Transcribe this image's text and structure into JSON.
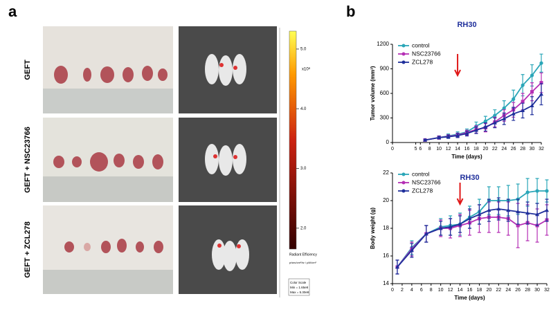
{
  "panel_labels": [
    "a",
    "b"
  ],
  "photo_labels": [
    "GEFT",
    "GEFT + NSC23766",
    "GEFT + ZCL278"
  ],
  "color_scale": {
    "clim": [
      1.65,
      5.3
    ],
    "ticks": [
      {
        "value": 5,
        "label": "5.0"
      },
      {
        "value": 4,
        "label": "4.0"
      },
      {
        "value": 3,
        "label": "3.0"
      },
      {
        "value": 2,
        "label": "2.0"
      }
    ],
    "unit": "x10⁸",
    "title": "Radiant Efficiency",
    "units": "p/sec/cm²/sr / µW/cm²",
    "box": [
      "Color Scale",
      "Min = 1.65e8",
      "Max = 5.30e8"
    ]
  },
  "chart_data": [
    {
      "type": "line",
      "title": "RH30",
      "xlabel": "Time (days)",
      "ylabel": "Tumor volume (mm³)",
      "xlim": [
        0,
        32
      ],
      "xticks": [
        0,
        5,
        6,
        8,
        10,
        12,
        14,
        16,
        18,
        20,
        22,
        24,
        26,
        28,
        30,
        32
      ],
      "ylim": [
        0,
        1200
      ],
      "yticks": [
        0,
        300,
        600,
        900,
        1200
      ],
      "arrow_x": 14,
      "legend": "top-left",
      "x": [
        7,
        10,
        12,
        14,
        16,
        18,
        20,
        22,
        24,
        26,
        28,
        30,
        32
      ],
      "series": [
        {
          "name": "control",
          "color": "#2aa6b8",
          "marker": "circle",
          "values": [
            30,
            60,
            80,
            100,
            130,
            200,
            260,
            330,
            420,
            530,
            700,
            820,
            970
          ],
          "errors": [
            10,
            20,
            25,
            30,
            35,
            50,
            60,
            70,
            90,
            110,
            130,
            130,
            110
          ]
        },
        {
          "name": "NSC23766",
          "color": "#b52fb5",
          "marker": "square",
          "values": [
            30,
            60,
            75,
            90,
            120,
            160,
            180,
            250,
            330,
            400,
            500,
            620,
            730
          ],
          "errors": [
            10,
            20,
            20,
            25,
            30,
            45,
            50,
            60,
            70,
            90,
            100,
            110,
            120
          ]
        },
        {
          "name": "ZCL278",
          "color": "#1f2f9b",
          "marker": "triangle",
          "values": [
            30,
            60,
            70,
            85,
            110,
            150,
            190,
            240,
            290,
            350,
            390,
            450,
            590
          ],
          "errors": [
            10,
            15,
            20,
            25,
            30,
            40,
            50,
            60,
            70,
            80,
            90,
            110,
            130
          ]
        }
      ]
    },
    {
      "type": "line",
      "title": "RH30",
      "xlabel": "Time (days)",
      "ylabel": "Body weight (g)",
      "xlim": [
        0,
        32
      ],
      "xticks": [
        0,
        2,
        4,
        6,
        8,
        10,
        12,
        14,
        16,
        18,
        20,
        22,
        24,
        26,
        28,
        30,
        32
      ],
      "ylim": [
        14,
        22
      ],
      "yticks": [
        14,
        16,
        18,
        20,
        22
      ],
      "arrow_x": 14,
      "legend": "top-left",
      "x": [
        1,
        4,
        7,
        10,
        12,
        14,
        16,
        18,
        20,
        22,
        24,
        26,
        28,
        30,
        32
      ],
      "series": [
        {
          "name": "control",
          "color": "#2aa6b8",
          "marker": "circle",
          "values": [
            15.2,
            16.6,
            17.6,
            18.1,
            18.2,
            18.3,
            18.8,
            19.2,
            20.0,
            20.0,
            20.0,
            20.1,
            20.6,
            20.7,
            20.7
          ],
          "errors": [
            0.5,
            0.5,
            0.6,
            0.6,
            0.7,
            0.8,
            0.8,
            0.9,
            1.0,
            1.0,
            1.1,
            1.1,
            1.0,
            0.9,
            0.8
          ]
        },
        {
          "name": "NSC23766",
          "color": "#b52fb5",
          "marker": "square",
          "values": [
            15.2,
            16.5,
            17.6,
            18.0,
            18.0,
            18.2,
            18.4,
            18.7,
            18.8,
            18.8,
            18.7,
            18.2,
            18.4,
            18.2,
            18.6
          ],
          "errors": [
            0.5,
            0.5,
            0.6,
            0.6,
            0.7,
            0.8,
            0.9,
            1.0,
            1.1,
            1.1,
            1.2,
            1.6,
            1.3,
            1.2,
            1.1
          ]
        },
        {
          "name": "ZCL278",
          "color": "#1f2f9b",
          "marker": "triangle",
          "values": [
            15.2,
            16.4,
            17.6,
            18.0,
            18.1,
            18.3,
            18.7,
            19.0,
            19.3,
            19.4,
            19.3,
            19.2,
            19.1,
            19.0,
            19.3
          ],
          "errors": [
            0.5,
            0.5,
            0.6,
            0.5,
            0.6,
            0.6,
            0.7,
            0.7,
            0.8,
            0.8,
            0.8,
            0.9,
            0.8,
            0.8,
            0.8
          ]
        }
      ]
    }
  ]
}
